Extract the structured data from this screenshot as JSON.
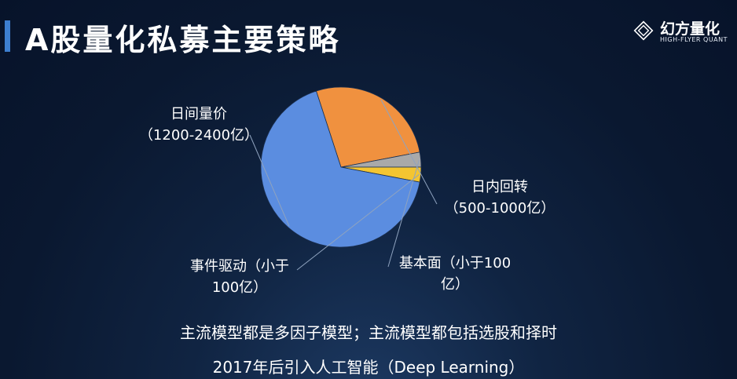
{
  "header": {
    "title": "A股量化私募主要策略"
  },
  "logo": {
    "name_cn": "幻方量化",
    "name_en": "HIGH-FLYER QUANT",
    "icon": "diamond-logo-icon"
  },
  "chart_data": {
    "type": "pie",
    "slices": [
      {
        "label_line1": "日间量价",
        "label_line2": "（1200-2400亿）",
        "value": 67,
        "color": "#5b8de0"
      },
      {
        "label_line1": "日内回转",
        "label_line2": "（500-1000亿）",
        "value": 27,
        "color": "#f0913f"
      },
      {
        "label_line1": "基本面（小于100",
        "label_line2": "亿）",
        "value": 3,
        "color": "#a9a9a9"
      },
      {
        "label_line1": "事件驱动（小于",
        "label_line2": "100亿）",
        "value": 3,
        "color": "#f4c531"
      }
    ],
    "legend": "none"
  },
  "captions": {
    "line1": "主流模型都是多因子模型；主流模型都包括选股和择时",
    "line2": "2017年后引入人工智能（Deep Learning）"
  },
  "colors": {
    "accent": "#3d7fd0",
    "leader_line": "#8fa3bf"
  }
}
